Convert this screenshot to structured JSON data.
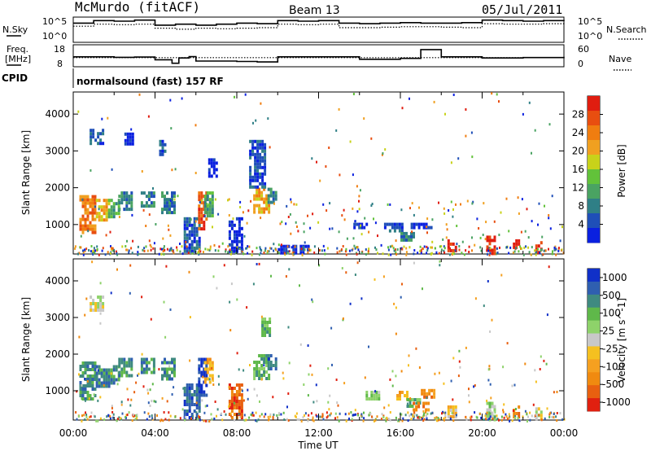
{
  "header": {
    "station": "McMurdo (fitACF)",
    "beam": "Beam 13",
    "date": "05/Jul/2011",
    "cpid_label": "CPID",
    "cpid_value": "normalsound (fast) 157 RF"
  },
  "colors": {
    "power_scale": [
      "#0a20e0",
      "#1f4fb8",
      "#2f7f86",
      "#4aa362",
      "#62c23a",
      "#c8d21a",
      "#f0a020",
      "#f07d10",
      "#e84e10",
      "#e01d10"
    ],
    "velocity_scale": [
      "#1030c8",
      "#2f5fb0",
      "#3f8a80",
      "#5fb84a",
      "#8ed26a",
      "#c8c8c8",
      "#f5c020",
      "#f5a020",
      "#f08a10",
      "#e86010",
      "#e02010"
    ]
  },
  "chart_data": [
    {
      "type": "line",
      "panel": "noise",
      "left_labels": [
        "N.Sky",
        "10^5",
        "10^0"
      ],
      "right_labels": [
        "10^5",
        "10^0",
        "N.Search"
      ],
      "x": [
        "00:00",
        "01:00",
        "02:00",
        "03:00",
        "04:00",
        "05:00",
        "06:00",
        "07:00",
        "08:00",
        "09:00",
        "10:00",
        "11:00",
        "12:00",
        "13:00",
        "14:00",
        "15:00",
        "16:00",
        "17:00",
        "18:00",
        "19:00",
        "20:00",
        "21:00",
        "22:00",
        "23:00",
        "24:00"
      ],
      "series": [
        {
          "name": "N.Sky",
          "values": [
            3.8,
            4.3,
            4.2,
            4.4,
            3.4,
            3.6,
            3.4,
            3.6,
            3.8,
            3.7,
            4.3,
            4.2,
            4.3,
            3.8,
            3.7,
            3.8,
            3.9,
            3.8,
            3.8,
            3.9,
            4.4,
            4.3,
            4.2,
            4.3,
            4.2
          ]
        },
        {
          "name": "N.Search",
          "values": [
            3.2,
            3.6,
            3.5,
            3.6,
            2.8,
            2.6,
            2.8,
            2.7,
            2.8,
            2.9,
            3.6,
            3.5,
            3.6,
            2.9,
            2.9,
            3.0,
            3.1,
            3.1,
            3.0,
            2.9,
            3.7,
            3.6,
            3.6,
            3.7,
            3.6
          ]
        }
      ],
      "ylim": [
        0,
        5
      ],
      "log_scale": true
    },
    {
      "type": "line",
      "panel": "frequency",
      "left_labels": [
        "Freq.",
        "[MHz]",
        "18",
        "8"
      ],
      "right_labels": [
        "60",
        "0",
        "Nave"
      ],
      "x": [
        "00:00",
        "01:00",
        "02:00",
        "03:00",
        "04:00",
        "04:50",
        "05:10",
        "05:40",
        "06:00",
        "07:00",
        "08:00",
        "09:00",
        "10:00",
        "12:00",
        "14:00",
        "16:00",
        "16:40",
        "17:00",
        "18:00",
        "20:00",
        "22:00",
        "24:00"
      ],
      "series": [
        {
          "name": "Freq.",
          "values": [
            12.5,
            12.5,
            12.3,
            12.4,
            11.2,
            9.6,
            12.0,
            12.6,
            10.6,
            10.6,
            10.4,
            10.2,
            12.5,
            12.5,
            11.4,
            11.8,
            11.8,
            15.8,
            12.5,
            12.0,
            12.2,
            12.5
          ]
        },
        {
          "name": "Nave",
          "values": [
            25,
            25,
            25,
            25,
            25,
            25,
            25,
            25,
            25,
            25,
            25,
            25,
            25,
            25,
            25,
            25,
            25,
            25,
            25,
            25,
            25,
            25
          ]
        }
      ],
      "ylim": [
        8,
        18
      ],
      "y2lim": [
        0,
        60
      ]
    },
    {
      "type": "heatmap",
      "panel": "power",
      "ylabel": "Slant Range [km]",
      "yticks": [
        "1000",
        "2000",
        "3000",
        "4000"
      ],
      "colorbar_label": "Power [dB]",
      "colorbar_ticks": [
        "4",
        "8",
        "12",
        "16",
        "20",
        "24",
        "28"
      ],
      "ylim": [
        200,
        4600
      ],
      "xlim": [
        0,
        24
      ],
      "patches": [
        {
          "t": [
            0.3,
            1.1
          ],
          "r": [
            800,
            1800
          ],
          "c": 7
        },
        {
          "t": [
            1.1,
            1.7
          ],
          "r": [
            1100,
            1700
          ],
          "c": 6
        },
        {
          "t": [
            1.7,
            2.2
          ],
          "r": [
            1200,
            1700
          ],
          "c": 3
        },
        {
          "t": [
            2.2,
            2.9
          ],
          "r": [
            1400,
            1900
          ],
          "c": 2
        },
        {
          "t": [
            3.3,
            3.9
          ],
          "r": [
            1500,
            1900
          ],
          "c": 2
        },
        {
          "t": [
            4.3,
            5.0
          ],
          "r": [
            1300,
            1900
          ],
          "c": 2
        },
        {
          "t": [
            5.4,
            6.2
          ],
          "r": [
            300,
            1200
          ],
          "c": 1
        },
        {
          "t": [
            6.1,
            6.5
          ],
          "r": [
            900,
            1900
          ],
          "c": 8
        },
        {
          "t": [
            6.4,
            6.8
          ],
          "r": [
            1200,
            1900
          ],
          "c": 3
        },
        {
          "t": [
            8.8,
            9.6
          ],
          "r": [
            1300,
            2000
          ],
          "c": 6
        },
        {
          "t": [
            9.5,
            9.9
          ],
          "r": [
            1600,
            2000
          ],
          "c": 2
        },
        {
          "t": [
            0.8,
            1.4
          ],
          "r": [
            3200,
            3600
          ],
          "c": 1
        },
        {
          "t": [
            2.5,
            2.9
          ],
          "r": [
            3200,
            3500
          ],
          "c": 0
        },
        {
          "t": [
            4.2,
            4.5
          ],
          "r": [
            2900,
            3300
          ],
          "c": 1
        },
        {
          "t": [
            6.6,
            7.0
          ],
          "r": [
            2300,
            2800
          ],
          "c": 0
        },
        {
          "t": [
            8.6,
            9.4
          ],
          "r": [
            2000,
            3300
          ],
          "c": 1
        },
        {
          "t": [
            13.7,
            14.3
          ],
          "r": [
            900,
            1050
          ],
          "c": 0
        },
        {
          "t": [
            15.2,
            16.1
          ],
          "r": [
            800,
            1050
          ],
          "c": 1
        },
        {
          "t": [
            16.5,
            17.5
          ],
          "r": [
            900,
            1050
          ],
          "c": 0
        },
        {
          "t": [
            16.0,
            16.6
          ],
          "r": [
            550,
            800
          ],
          "c": 2
        },
        {
          "t": [
            7.6,
            8.2
          ],
          "r": [
            300,
            1200
          ],
          "c": 0
        },
        {
          "t": [
            10.0,
            11.5
          ],
          "r": [
            250,
            450
          ],
          "c": 0
        },
        {
          "t": [
            18.3,
            18.7
          ],
          "r": [
            250,
            600
          ],
          "c": 9
        },
        {
          "t": [
            20.2,
            20.6
          ],
          "r": [
            250,
            700
          ],
          "c": 9
        },
        {
          "t": [
            21.5,
            21.8
          ],
          "r": [
            250,
            600
          ],
          "c": 9
        },
        {
          "t": [
            22.6,
            22.9
          ],
          "r": [
            250,
            550
          ],
          "c": 8
        }
      ]
    },
    {
      "type": "heatmap",
      "panel": "velocity",
      "ylabel": "Slant Range [km]",
      "yticks": [
        "1000",
        "2000",
        "3000",
        "4000"
      ],
      "colorbar_label": "Velocity [m s^-1]",
      "colorbar_ticks": [
        "1000",
        "500",
        "100",
        "25",
        "-25",
        "-100",
        "-500",
        "-1000"
      ],
      "xlabel": "Time UT",
      "xticks": [
        "00:00",
        "04:00",
        "08:00",
        "12:00",
        "16:00",
        "20:00",
        "00:00"
      ],
      "ylim": [
        200,
        4600
      ],
      "xlim": [
        0,
        24
      ],
      "patches": [
        {
          "t": [
            0.3,
            1.1
          ],
          "r": [
            800,
            1800
          ],
          "c": 2
        },
        {
          "t": [
            1.1,
            1.7
          ],
          "r": [
            1100,
            1700
          ],
          "c": 2
        },
        {
          "t": [
            1.7,
            2.2
          ],
          "r": [
            1200,
            1700
          ],
          "c": 2
        },
        {
          "t": [
            2.2,
            2.9
          ],
          "r": [
            1400,
            1900
          ],
          "c": 2
        },
        {
          "t": [
            3.3,
            3.9
          ],
          "r": [
            1500,
            1900
          ],
          "c": 2
        },
        {
          "t": [
            4.3,
            5.0
          ],
          "r": [
            1300,
            1900
          ],
          "c": 2
        },
        {
          "t": [
            5.4,
            6.2
          ],
          "r": [
            300,
            1200
          ],
          "c": 1
        },
        {
          "t": [
            6.1,
            6.5
          ],
          "r": [
            900,
            1900
          ],
          "c": 0
        },
        {
          "t": [
            6.4,
            6.8
          ],
          "r": [
            1200,
            1900
          ],
          "c": 7
        },
        {
          "t": [
            8.8,
            9.6
          ],
          "r": [
            1300,
            2000
          ],
          "c": 3
        },
        {
          "t": [
            9.5,
            9.9
          ],
          "r": [
            1600,
            2000
          ],
          "c": 1
        },
        {
          "t": [
            9.2,
            9.6
          ],
          "r": [
            2500,
            3000
          ],
          "c": 3
        },
        {
          "t": [
            0.8,
            1.4
          ],
          "r": [
            3200,
            3600
          ],
          "c": 5
        },
        {
          "t": [
            14.3,
            14.9
          ],
          "r": [
            800,
            1000
          ],
          "c": 4
        },
        {
          "t": [
            15.8,
            16.4
          ],
          "r": [
            800,
            1000
          ],
          "c": 7
        },
        {
          "t": [
            16.3,
            16.9
          ],
          "r": [
            600,
            800
          ],
          "c": 3
        },
        {
          "t": [
            17.0,
            17.6
          ],
          "r": [
            800,
            1050
          ],
          "c": 8
        },
        {
          "t": [
            16.6,
            17.4
          ],
          "r": [
            500,
            700
          ],
          "c": 8
        },
        {
          "t": [
            7.6,
            8.2
          ],
          "r": [
            300,
            1200
          ],
          "c": 9
        },
        {
          "t": [
            18.3,
            18.7
          ],
          "r": [
            250,
            600
          ],
          "c": 6
        },
        {
          "t": [
            20.2,
            20.6
          ],
          "r": [
            250,
            700
          ],
          "c": 4
        },
        {
          "t": [
            21.5,
            21.8
          ],
          "r": [
            250,
            600
          ],
          "c": 8
        },
        {
          "t": [
            22.6,
            22.9
          ],
          "r": [
            250,
            550
          ],
          "c": 5
        }
      ]
    }
  ]
}
